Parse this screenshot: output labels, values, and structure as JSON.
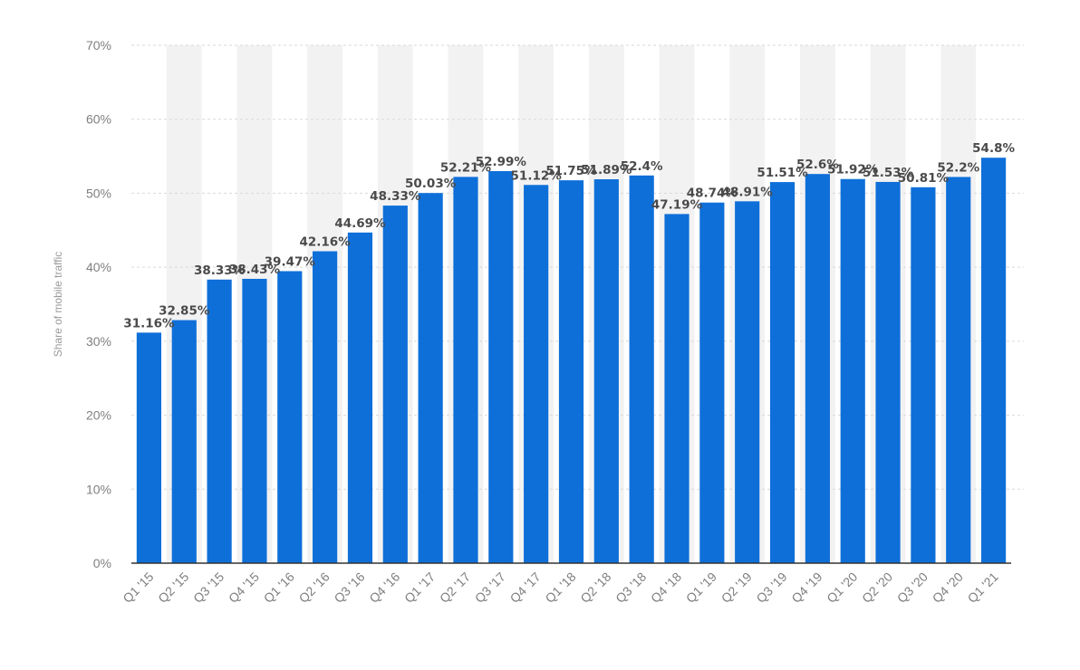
{
  "chart_data": {
    "type": "bar",
    "categories": [
      "Q1 '15",
      "Q2 '15",
      "Q3 '15",
      "Q4 '15",
      "Q1 '16",
      "Q2 '16",
      "Q3 '16",
      "Q4 '16",
      "Q1 '17",
      "Q2 '17",
      "Q3 '17",
      "Q4 '17",
      "Q1 '18",
      "Q2 '18",
      "Q3 '18",
      "Q4 '18",
      "Q1 '19",
      "Q2 '19",
      "Q3 '19",
      "Q4 '19",
      "Q1 '20",
      "Q2 '20",
      "Q3 '20",
      "Q4 '20",
      "Q1 '21"
    ],
    "values": [
      31.16,
      32.85,
      38.33,
      38.43,
      39.47,
      42.16,
      44.69,
      48.33,
      50.03,
      52.21,
      52.99,
      51.12,
      51.75,
      51.89,
      52.4,
      47.19,
      48.74,
      48.91,
      51.51,
      52.6,
      51.92,
      51.53,
      50.81,
      52.2,
      54.8
    ],
    "data_labels": [
      "31.16%",
      "32.85%",
      "38.33%",
      "38.43%",
      "39.47%",
      "42.16%",
      "44.69%",
      "48.33%",
      "50.03%",
      "52.21%",
      "52.99%",
      "51.12%",
      "51.75%",
      "51.89%",
      "52.4%",
      "47.19%",
      "48.74%",
      "48.91%",
      "51.51%",
      "52.6%",
      "51.92%",
      "51.53%",
      "50.81%",
      "52.2%",
      "54.8%"
    ],
    "ylabel": "Share of mobile traffic",
    "xlabel": "",
    "ylim": [
      0,
      70
    ],
    "y_ticks": [
      "0%",
      "10%",
      "20%",
      "30%",
      "40%",
      "50%",
      "60%",
      "70%"
    ],
    "y_tick_values": [
      0,
      10,
      20,
      30,
      40,
      50,
      60,
      70
    ],
    "grid": "horizontal dashed",
    "bar_color": "#0e6fd9",
    "alt_band_color": "#f2f2f2"
  }
}
